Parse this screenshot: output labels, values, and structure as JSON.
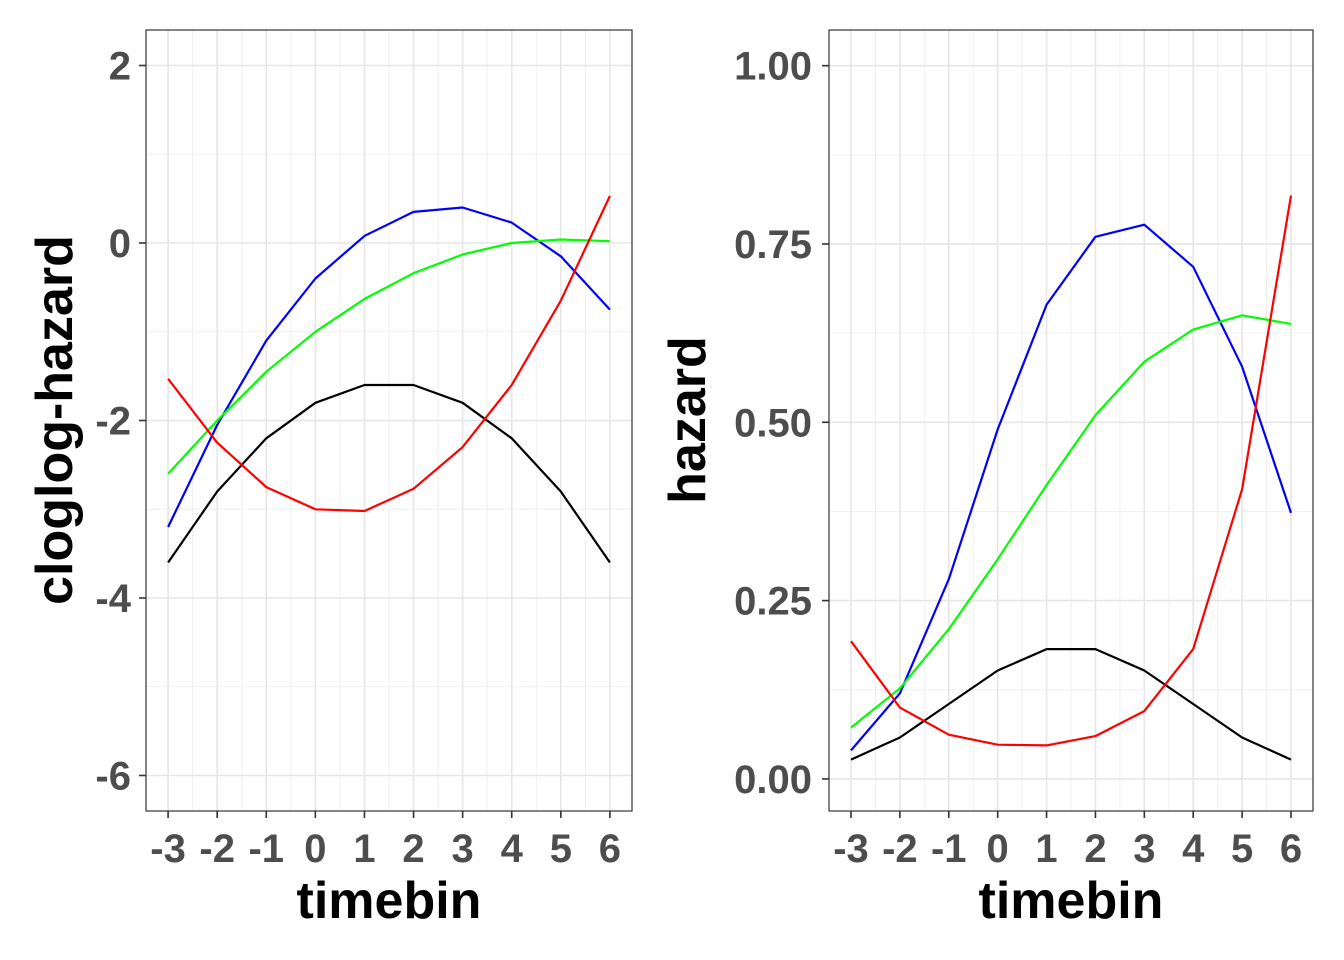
{
  "chart_data": [
    {
      "type": "line",
      "title": "",
      "xlabel": "timebin",
      "ylabel": "cloglog-hazard",
      "x": [
        -3,
        -2,
        -1,
        0,
        1,
        2,
        3,
        4,
        5,
        6
      ],
      "x_tick_labels": [
        "-3",
        "-2",
        "-1",
        "0",
        "1",
        "2",
        "3",
        "4",
        "5",
        "6"
      ],
      "xlim": [
        -3.45,
        6.45
      ],
      "ylim": [
        -6.4,
        2.4
      ],
      "y_ticks": [
        -6,
        -4,
        -2,
        0,
        2
      ],
      "y_tick_labels": [
        "-6",
        "-4",
        "-2",
        "0",
        "2"
      ],
      "grid": true,
      "series": [
        {
          "color": "#000000",
          "values": [
            -3.6,
            -2.8,
            -2.2,
            -1.8,
            -1.6,
            -1.6,
            -1.8,
            -2.2,
            -2.8,
            -3.6
          ]
        },
        {
          "color": "#0000ff",
          "values": [
            -3.2,
            -2.05,
            -1.1,
            -0.4,
            0.08,
            0.35,
            0.4,
            0.23,
            -0.15,
            -0.75
          ]
        },
        {
          "color": "#00ff00",
          "values": [
            -2.6,
            -2.0,
            -1.45,
            -1.0,
            -0.63,
            -0.34,
            -0.13,
            0.0,
            0.04,
            0.02
          ]
        },
        {
          "color": "#ff0000",
          "values": [
            -1.53,
            -2.25,
            -2.75,
            -3.0,
            -3.02,
            -2.77,
            -2.3,
            -1.6,
            -0.65,
            0.53
          ]
        }
      ]
    },
    {
      "type": "line",
      "title": "",
      "xlabel": "timebin",
      "ylabel": "hazard",
      "x": [
        -3,
        -2,
        -1,
        0,
        1,
        2,
        3,
        4,
        5,
        6
      ],
      "x_tick_labels": [
        "-3",
        "-2",
        "-1",
        "0",
        "1",
        "2",
        "3",
        "4",
        "5",
        "6"
      ],
      "xlim": [
        -3.45,
        6.45
      ],
      "ylim": [
        -0.045,
        1.05
      ],
      "y_ticks": [
        0.0,
        0.25,
        0.5,
        0.75,
        1.0
      ],
      "y_tick_labels": [
        "0.00",
        "0.25",
        "0.50",
        "0.75",
        "1.00"
      ],
      "grid": true,
      "series": [
        {
          "color": "#000000",
          "values": [
            0.027,
            0.058,
            0.105,
            0.152,
            0.182,
            0.182,
            0.152,
            0.105,
            0.058,
            0.027
          ]
        },
        {
          "color": "#0000ff",
          "values": [
            0.04,
            0.12,
            0.28,
            0.49,
            0.665,
            0.76,
            0.777,
            0.718,
            0.578,
            0.373
          ]
        },
        {
          "color": "#00ff00",
          "values": [
            0.072,
            0.127,
            0.21,
            0.308,
            0.412,
            0.51,
            0.585,
            0.63,
            0.65,
            0.638
          ]
        },
        {
          "color": "#ff0000",
          "values": [
            0.193,
            0.1,
            0.062,
            0.048,
            0.047,
            0.06,
            0.095,
            0.182,
            0.406,
            0.818
          ]
        }
      ]
    }
  ]
}
